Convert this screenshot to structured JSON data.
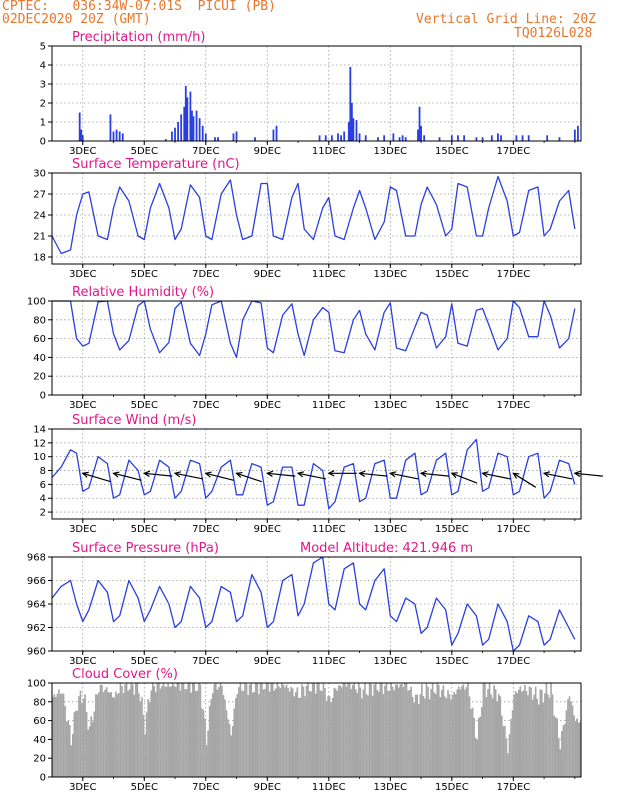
{
  "header": {
    "line1": "CPTEC:   036:34W-07:01S  PICUI (PB)",
    "line2": "02DEC2020 20Z (GMT)",
    "grid_note": "Vertical Grid Line: 20Z",
    "code": "TQ0126L028",
    "model_altitude": "Model Altitude: 421.946 m"
  },
  "colors": {
    "header": "#e8762c",
    "title": "#e0178a",
    "series": "#2a3fe0",
    "cloud": "#a6a6a6",
    "wind_arrow": "#000000"
  },
  "x_ticks": [
    "3DEC",
    "5DEC",
    "7DEC",
    "9DEC",
    "11DEC",
    "13DEC",
    "15DEC",
    "17DEC"
  ],
  "chart_data": [
    {
      "id": "precip",
      "type": "bar",
      "title": "Precipitation (mm/h)",
      "ylim": [
        0,
        5
      ],
      "yticks": [
        0,
        1,
        2,
        3,
        4,
        5
      ],
      "grid": true,
      "x_unit": "days since 02DEC 20Z",
      "bars": [
        [
          0.9,
          1.5
        ],
        [
          0.95,
          0.6
        ],
        [
          1.0,
          0.3
        ],
        [
          1.9,
          1.4
        ],
        [
          2.0,
          0.5
        ],
        [
          2.1,
          0.6
        ],
        [
          2.2,
          0.5
        ],
        [
          2.3,
          0.4
        ],
        [
          3.7,
          0.1
        ],
        [
          3.9,
          0.5
        ],
        [
          4.0,
          0.7
        ],
        [
          4.1,
          1.0
        ],
        [
          4.2,
          1.4
        ],
        [
          4.3,
          1.8
        ],
        [
          4.35,
          2.9
        ],
        [
          4.4,
          2.3
        ],
        [
          4.5,
          2.6
        ],
        [
          4.55,
          1.6
        ],
        [
          4.6,
          1.3
        ],
        [
          4.7,
          1.6
        ],
        [
          4.8,
          1.2
        ],
        [
          4.9,
          0.8
        ],
        [
          5.0,
          0.4
        ],
        [
          5.3,
          0.2
        ],
        [
          5.4,
          0.2
        ],
        [
          5.9,
          0.4
        ],
        [
          6.0,
          0.5
        ],
        [
          6.6,
          0.2
        ],
        [
          7.2,
          0.6
        ],
        [
          7.3,
          0.8
        ],
        [
          8.7,
          0.3
        ],
        [
          8.9,
          0.3
        ],
        [
          9.1,
          0.3
        ],
        [
          9.3,
          0.4
        ],
        [
          9.4,
          0.3
        ],
        [
          9.5,
          0.5
        ],
        [
          9.65,
          1.0
        ],
        [
          9.7,
          3.9
        ],
        [
          9.75,
          2.0
        ],
        [
          9.8,
          1.2
        ],
        [
          9.9,
          1.1
        ],
        [
          10.0,
          0.4
        ],
        [
          10.2,
          0.3
        ],
        [
          10.6,
          0.2
        ],
        [
          10.8,
          0.3
        ],
        [
          11.1,
          0.4
        ],
        [
          11.3,
          0.2
        ],
        [
          11.4,
          0.3
        ],
        [
          11.5,
          0.2
        ],
        [
          11.9,
          0.6
        ],
        [
          11.95,
          1.8
        ],
        [
          12.0,
          0.8
        ],
        [
          12.1,
          0.3
        ],
        [
          12.6,
          0.2
        ],
        [
          13.0,
          0.3
        ],
        [
          13.2,
          0.3
        ],
        [
          13.4,
          0.3
        ],
        [
          13.8,
          0.2
        ],
        [
          14.0,
          0.2
        ],
        [
          14.3,
          0.3
        ],
        [
          14.5,
          0.4
        ],
        [
          14.6,
          0.3
        ],
        [
          15.1,
          0.3
        ],
        [
          15.3,
          0.3
        ],
        [
          15.5,
          0.3
        ],
        [
          16.1,
          0.3
        ],
        [
          16.5,
          0.2
        ],
        [
          17.0,
          0.6
        ],
        [
          17.1,
          0.8
        ]
      ]
    },
    {
      "id": "temp",
      "type": "line",
      "title": "Surface Temperature (nC)",
      "ylim": [
        17,
        30
      ],
      "yticks": [
        18,
        21,
        24,
        27,
        30
      ],
      "grid": true,
      "x": [
        0,
        0.3,
        0.6,
        0.8,
        1.0,
        1.2,
        1.5,
        1.8,
        2.0,
        2.2,
        2.5,
        2.8,
        3.0,
        3.2,
        3.5,
        3.8,
        4.0,
        4.2,
        4.5,
        4.8,
        5.0,
        5.2,
        5.5,
        5.8,
        6.0,
        6.2,
        6.5,
        6.8,
        7.0,
        7.2,
        7.5,
        7.8,
        8.0,
        8.2,
        8.5,
        8.8,
        9.0,
        9.2,
        9.5,
        9.8,
        10.0,
        10.2,
        10.5,
        10.8,
        11.0,
        11.2,
        11.5,
        11.8,
        12.0,
        12.2,
        12.5,
        12.8,
        13.0,
        13.2,
        13.5,
        13.8,
        14.0,
        14.2,
        14.5,
        14.8,
        15.0,
        15.2,
        15.5,
        15.8,
        16.0,
        16.2,
        16.5,
        16.8,
        17.0
      ],
      "y": [
        21,
        18.5,
        19,
        24,
        27,
        27.3,
        21,
        20.5,
        25,
        28,
        26,
        21,
        20.5,
        25,
        28.5,
        25,
        20.5,
        22,
        28.3,
        26.5,
        21,
        20.5,
        27,
        29,
        24,
        20.5,
        21,
        28.5,
        28.5,
        21,
        20.5,
        26.5,
        28.5,
        22,
        20.5,
        25,
        26.5,
        21,
        20.5,
        25,
        27.5,
        25,
        20.5,
        23,
        28,
        27.5,
        21,
        21,
        25.5,
        28,
        25.5,
        21,
        22,
        28.5,
        28,
        21,
        21,
        25,
        29.5,
        26,
        21,
        21.5,
        27.5,
        28,
        21,
        22,
        26,
        27.5,
        22
      ]
    },
    {
      "id": "rh",
      "type": "line",
      "title": "Relative Humidity (%)",
      "ylim": [
        0,
        100
      ],
      "yticks": [
        0,
        20,
        40,
        60,
        80,
        100
      ],
      "grid": true,
      "x": [
        0,
        0.3,
        0.6,
        0.8,
        1.0,
        1.2,
        1.5,
        1.8,
        2.0,
        2.2,
        2.5,
        2.8,
        3.0,
        3.2,
        3.5,
        3.8,
        4.0,
        4.2,
        4.5,
        4.8,
        5.0,
        5.2,
        5.5,
        5.8,
        6.0,
        6.2,
        6.5,
        6.8,
        7.0,
        7.2,
        7.5,
        7.8,
        8.0,
        8.2,
        8.5,
        8.8,
        9.0,
        9.2,
        9.5,
        9.8,
        10.0,
        10.2,
        10.5,
        10.8,
        11.0,
        11.2,
        11.5,
        11.8,
        12.0,
        12.2,
        12.5,
        12.8,
        13.0,
        13.2,
        13.5,
        13.8,
        14.0,
        14.2,
        14.5,
        14.8,
        15.0,
        15.2,
        15.5,
        15.8,
        16.0,
        16.2,
        16.5,
        16.8,
        17.0
      ],
      "y": [
        100,
        100,
        100,
        60,
        52,
        55,
        99,
        100,
        65,
        48,
        58,
        95,
        100,
        70,
        45,
        56,
        92,
        99,
        55,
        42,
        65,
        96,
        100,
        55,
        40,
        80,
        100,
        98,
        50,
        45,
        85,
        97,
        65,
        42,
        80,
        93,
        88,
        47,
        45,
        80,
        90,
        65,
        48,
        88,
        98,
        50,
        47,
        72,
        88,
        85,
        50,
        62,
        97,
        55,
        52,
        90,
        92,
        75,
        48,
        60,
        100,
        93,
        62,
        62,
        100,
        85,
        50,
        60,
        92
      ]
    },
    {
      "id": "wind",
      "type": "line",
      "title": "Surface Wind (m/s)",
      "ylim": [
        1,
        14
      ],
      "yticks": [
        2,
        4,
        6,
        8,
        10,
        12,
        14
      ],
      "grid": true,
      "x": [
        0,
        0.3,
        0.6,
        0.8,
        1.0,
        1.2,
        1.5,
        1.8,
        2.0,
        2.2,
        2.5,
        2.8,
        3.0,
        3.2,
        3.5,
        3.8,
        4.0,
        4.2,
        4.5,
        4.8,
        5.0,
        5.2,
        5.5,
        5.8,
        6.0,
        6.2,
        6.5,
        6.8,
        7.0,
        7.2,
        7.5,
        7.8,
        8.0,
        8.2,
        8.5,
        8.8,
        9.0,
        9.2,
        9.5,
        9.8,
        10.0,
        10.2,
        10.5,
        10.8,
        11.0,
        11.2,
        11.5,
        11.8,
        12.0,
        12.2,
        12.5,
        12.8,
        13.0,
        13.2,
        13.5,
        13.8,
        14.0,
        14.2,
        14.5,
        14.8,
        15.0,
        15.2,
        15.5,
        15.8,
        16.0,
        16.2,
        16.5,
        16.8,
        17.0
      ],
      "y": [
        7,
        8.5,
        11,
        10.5,
        5,
        5.5,
        10,
        9,
        4,
        4.5,
        9.5,
        8,
        4.5,
        5,
        9.5,
        8.5,
        4,
        5,
        9.5,
        9,
        4,
        5,
        8.5,
        9.5,
        4.5,
        4.5,
        9,
        8.5,
        3,
        3.5,
        8.5,
        8.5,
        3,
        3,
        9,
        8,
        2.5,
        3.5,
        8.5,
        9,
        3.5,
        4,
        9,
        9.5,
        4,
        4,
        9.5,
        10.5,
        4.5,
        5,
        9.5,
        10.5,
        4.5,
        5,
        11,
        12.5,
        5,
        5.5,
        10.5,
        10,
        4.5,
        5,
        10,
        10.5,
        4,
        5,
        9.5,
        9,
        6
      ],
      "barbs_x": [
        1.0,
        2.0,
        3.0,
        4.0,
        5.0,
        6.0,
        7.0,
        8.0,
        9.0,
        10.0,
        11.0,
        12.0,
        13.0,
        14.0,
        15.0,
        16.0,
        17.0
      ],
      "barbs_u": [
        -1,
        -1,
        -1,
        -1,
        -1,
        -0.9,
        -1,
        -1,
        -1,
        -1,
        -1,
        -1,
        -0.9,
        -1,
        -0.8,
        -1,
        -1
      ],
      "barbs_v": [
        0.3,
        0.25,
        0.1,
        0.2,
        0.25,
        0.3,
        0.1,
        0.2,
        0.0,
        0.1,
        0.2,
        0.1,
        0.35,
        0.2,
        0.5,
        0.2,
        0.1
      ]
    },
    {
      "id": "pres",
      "type": "line",
      "title": "Surface Pressure (hPa)",
      "ylim": [
        960,
        968
      ],
      "yticks": [
        960,
        962,
        964,
        966,
        968
      ],
      "grid": true,
      "x": [
        0,
        0.3,
        0.6,
        0.8,
        1.0,
        1.2,
        1.5,
        1.8,
        2.0,
        2.2,
        2.5,
        2.8,
        3.0,
        3.2,
        3.5,
        3.8,
        4.0,
        4.2,
        4.5,
        4.8,
        5.0,
        5.2,
        5.5,
        5.8,
        6.0,
        6.2,
        6.5,
        6.8,
        7.0,
        7.2,
        7.5,
        7.8,
        8.0,
        8.2,
        8.5,
        8.8,
        9.0,
        9.2,
        9.5,
        9.8,
        10.0,
        10.2,
        10.5,
        10.8,
        11.0,
        11.2,
        11.5,
        11.8,
        12.0,
        12.2,
        12.5,
        12.8,
        13.0,
        13.2,
        13.5,
        13.8,
        14.0,
        14.2,
        14.5,
        14.8,
        15.0,
        15.2,
        15.5,
        15.8,
        16.0,
        16.2,
        16.5,
        16.8,
        17.0
      ],
      "y": [
        964.5,
        965.5,
        966,
        964,
        962.5,
        963.5,
        966,
        965,
        962.5,
        963,
        966,
        964.5,
        962.5,
        963.5,
        965.5,
        964,
        962,
        962.5,
        965.5,
        964.5,
        962,
        962.5,
        965.5,
        965,
        962.5,
        963,
        966.5,
        965,
        962,
        962.5,
        966,
        966.5,
        963,
        964,
        967.5,
        968,
        964,
        963.5,
        967,
        967.5,
        964,
        963.5,
        966,
        967,
        963,
        962.5,
        964.5,
        964,
        961.5,
        962,
        964.5,
        963.5,
        960.5,
        961.5,
        964,
        963,
        960.5,
        961,
        964,
        962.5,
        960,
        960.5,
        963,
        962.5,
        960.5,
        961,
        963.5,
        962,
        961
      ]
    },
    {
      "id": "cloud",
      "type": "bar",
      "title": "Cloud Cover (%)",
      "ylim": [
        0,
        100
      ],
      "yticks": [
        0,
        20,
        40,
        60,
        80,
        100
      ],
      "grid": true,
      "x": [
        0,
        0.3,
        0.6,
        0.8,
        1.0,
        1.2,
        1.5,
        1.8,
        2.0,
        2.2,
        2.5,
        2.8,
        3.0,
        3.2,
        3.5,
        3.8,
        4.0,
        4.2,
        4.5,
        4.8,
        5.0,
        5.2,
        5.5,
        5.8,
        6.0,
        6.2,
        6.5,
        6.8,
        7.0,
        7.2,
        7.5,
        7.8,
        8.0,
        8.2,
        8.5,
        8.8,
        9.0,
        9.2,
        9.5,
        9.8,
        10.0,
        10.2,
        10.5,
        10.8,
        11.0,
        11.2,
        11.5,
        11.8,
        12.0,
        12.2,
        12.5,
        12.8,
        13.0,
        13.2,
        13.5,
        13.8,
        14.0,
        14.2,
        14.5,
        14.8,
        15.0,
        15.2,
        15.5,
        15.8,
        16.0,
        16.2,
        16.5,
        16.8,
        17.0
      ],
      "y": [
        85,
        92,
        40,
        80,
        88,
        50,
        96,
        92,
        85,
        95,
        98,
        96,
        55,
        96,
        98,
        97,
        99,
        98,
        99,
        97,
        40,
        96,
        98,
        45,
        94,
        97,
        96,
        99,
        99,
        96,
        98,
        92,
        88,
        95,
        99,
        97,
        80,
        94,
        99,
        98,
        92,
        93,
        98,
        96,
        95,
        97,
        99,
        82,
        90,
        92,
        96,
        88,
        86,
        95,
        97,
        40,
        96,
        93,
        88,
        30,
        88,
        94,
        92,
        85,
        90,
        93,
        35,
        88,
        60
      ]
    }
  ]
}
